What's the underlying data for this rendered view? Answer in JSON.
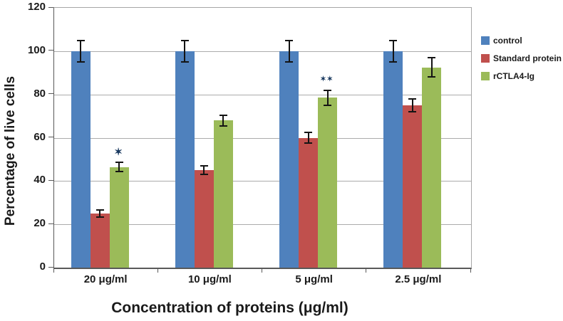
{
  "chart_data": {
    "type": "bar",
    "xlabel": "Concentration of proteins (μg/ml)",
    "ylabel": "Percentage of live cells",
    "ylim": [
      0,
      120
    ],
    "ytick_step": 20,
    "grid": true,
    "legend_position": "right",
    "categories": [
      "20 μg/ml",
      "10 μg/ml",
      "5 μg/ml",
      "2.5 μg/ml"
    ],
    "series": [
      {
        "name": "control",
        "color": "#4F81BD",
        "values": [
          100,
          100,
          100,
          100
        ],
        "errors": [
          5,
          5,
          5,
          5
        ]
      },
      {
        "name": "Standard protein",
        "color": "#C0504D",
        "values": [
          25,
          45,
          60,
          75
        ],
        "errors": [
          1.5,
          2,
          2.5,
          3
        ]
      },
      {
        "name": "rCTLA4-Ig",
        "color": "#9BBB59",
        "values": [
          46.5,
          68,
          78.5,
          92.5
        ],
        "errors": [
          2,
          2.5,
          3.5,
          4.5
        ]
      }
    ],
    "annotations": [
      {
        "series_index": 2,
        "category_index": 0,
        "text": "✶"
      },
      {
        "series_index": 2,
        "category_index": 2,
        "text": "✶✶"
      }
    ],
    "colors": {
      "background": "#FFFFFF",
      "text": "#1A1A1A",
      "gridline": "#ABABAB",
      "axis": "#595959",
      "plot_border": "#A6A6A6",
      "error_bar": "#141414",
      "annotation": "#17375E"
    }
  }
}
